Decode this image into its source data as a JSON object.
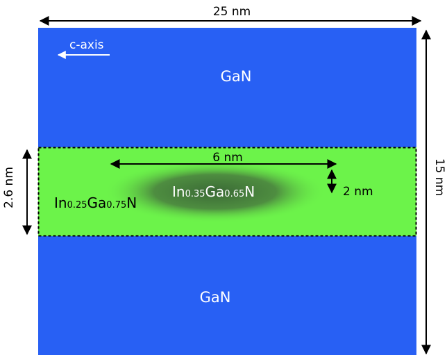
{
  "diagram": {
    "colors": {
      "gan": "#2860f4",
      "well": "#6cf34a",
      "dot_center": "#3b6a36",
      "arrow": "#000000",
      "white_text": "#ffffff"
    },
    "dimensions": {
      "width_label": "25 nm",
      "height_label": "15 nm",
      "well_thickness_label": "2.6 nm",
      "dot_length_label": "6 nm",
      "dot_height_label": "2 nm"
    },
    "axis": {
      "label": "c-axis"
    },
    "layers": {
      "top": {
        "material": "GaN"
      },
      "bottom": {
        "material": "GaN"
      },
      "well": {
        "base1": "In",
        "sub1": "0.25",
        "base2": "Ga",
        "sub2": "0.75",
        "base3": "N"
      },
      "dot": {
        "base1": "In",
        "sub1": "0.35",
        "base2": "Ga",
        "sub2": "0.65",
        "base3": "N"
      }
    }
  }
}
